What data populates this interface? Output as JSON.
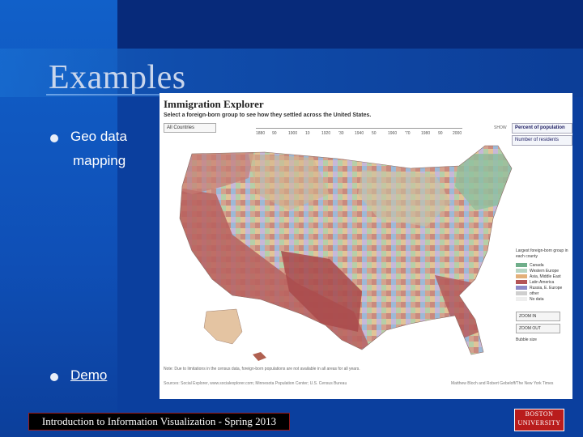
{
  "slide": {
    "title": "Examples",
    "bullets": [
      "Geo data",
      "mapping",
      "Demo"
    ],
    "footer": "Introduction to Information Visualization - Spring 2013",
    "logo": [
      "BOSTON",
      "UNIVERSITY"
    ]
  },
  "map_panel": {
    "title": "Immigration Explorer",
    "subtitle": "Select a foreign-born group to see how they settled across the United States.",
    "select_value": "All Countries",
    "years": [
      "1880",
      "90",
      "1900",
      "10",
      "1920",
      "'30",
      "1940",
      "50",
      "1960",
      "'70",
      "1980",
      "90",
      "2000"
    ],
    "show_label": "SHOW",
    "show_options": [
      "Percent of population",
      "Number of residents"
    ],
    "legend_title": "Largest foreign-born group in each county",
    "legend_items": [
      {
        "label": "Canada",
        "color": "#6fae8a"
      },
      {
        "label": "Western Europe",
        "color": "#b7d5c3"
      },
      {
        "label": "Asia, Middle East",
        "color": "#e3b07a"
      },
      {
        "label": "Latin America",
        "color": "#b45456"
      },
      {
        "label": "Russia, E. Europe",
        "color": "#8d89c7"
      },
      {
        "label": "other",
        "color": "#cfcfcf"
      }
    ],
    "no_data": "No data",
    "zoom_in": "ZOOM IN",
    "zoom_out": "ZOOM OUT",
    "bubble_label": "Bubble size",
    "note": "Note: Due to limitations in the census data, foreign-born populations are not available in all areas for all years.",
    "sources": "Sources: Social Explorer, www.socialexplorer.com; Minnesota Population Center; U.S. Census Bureau",
    "credit": "Matthew Bloch and Robert Gebeloff/The New York Times"
  },
  "colors": {
    "background": "#0b3f9e",
    "footer_border": "#9a1a1a",
    "logo": "#b91c1c"
  }
}
